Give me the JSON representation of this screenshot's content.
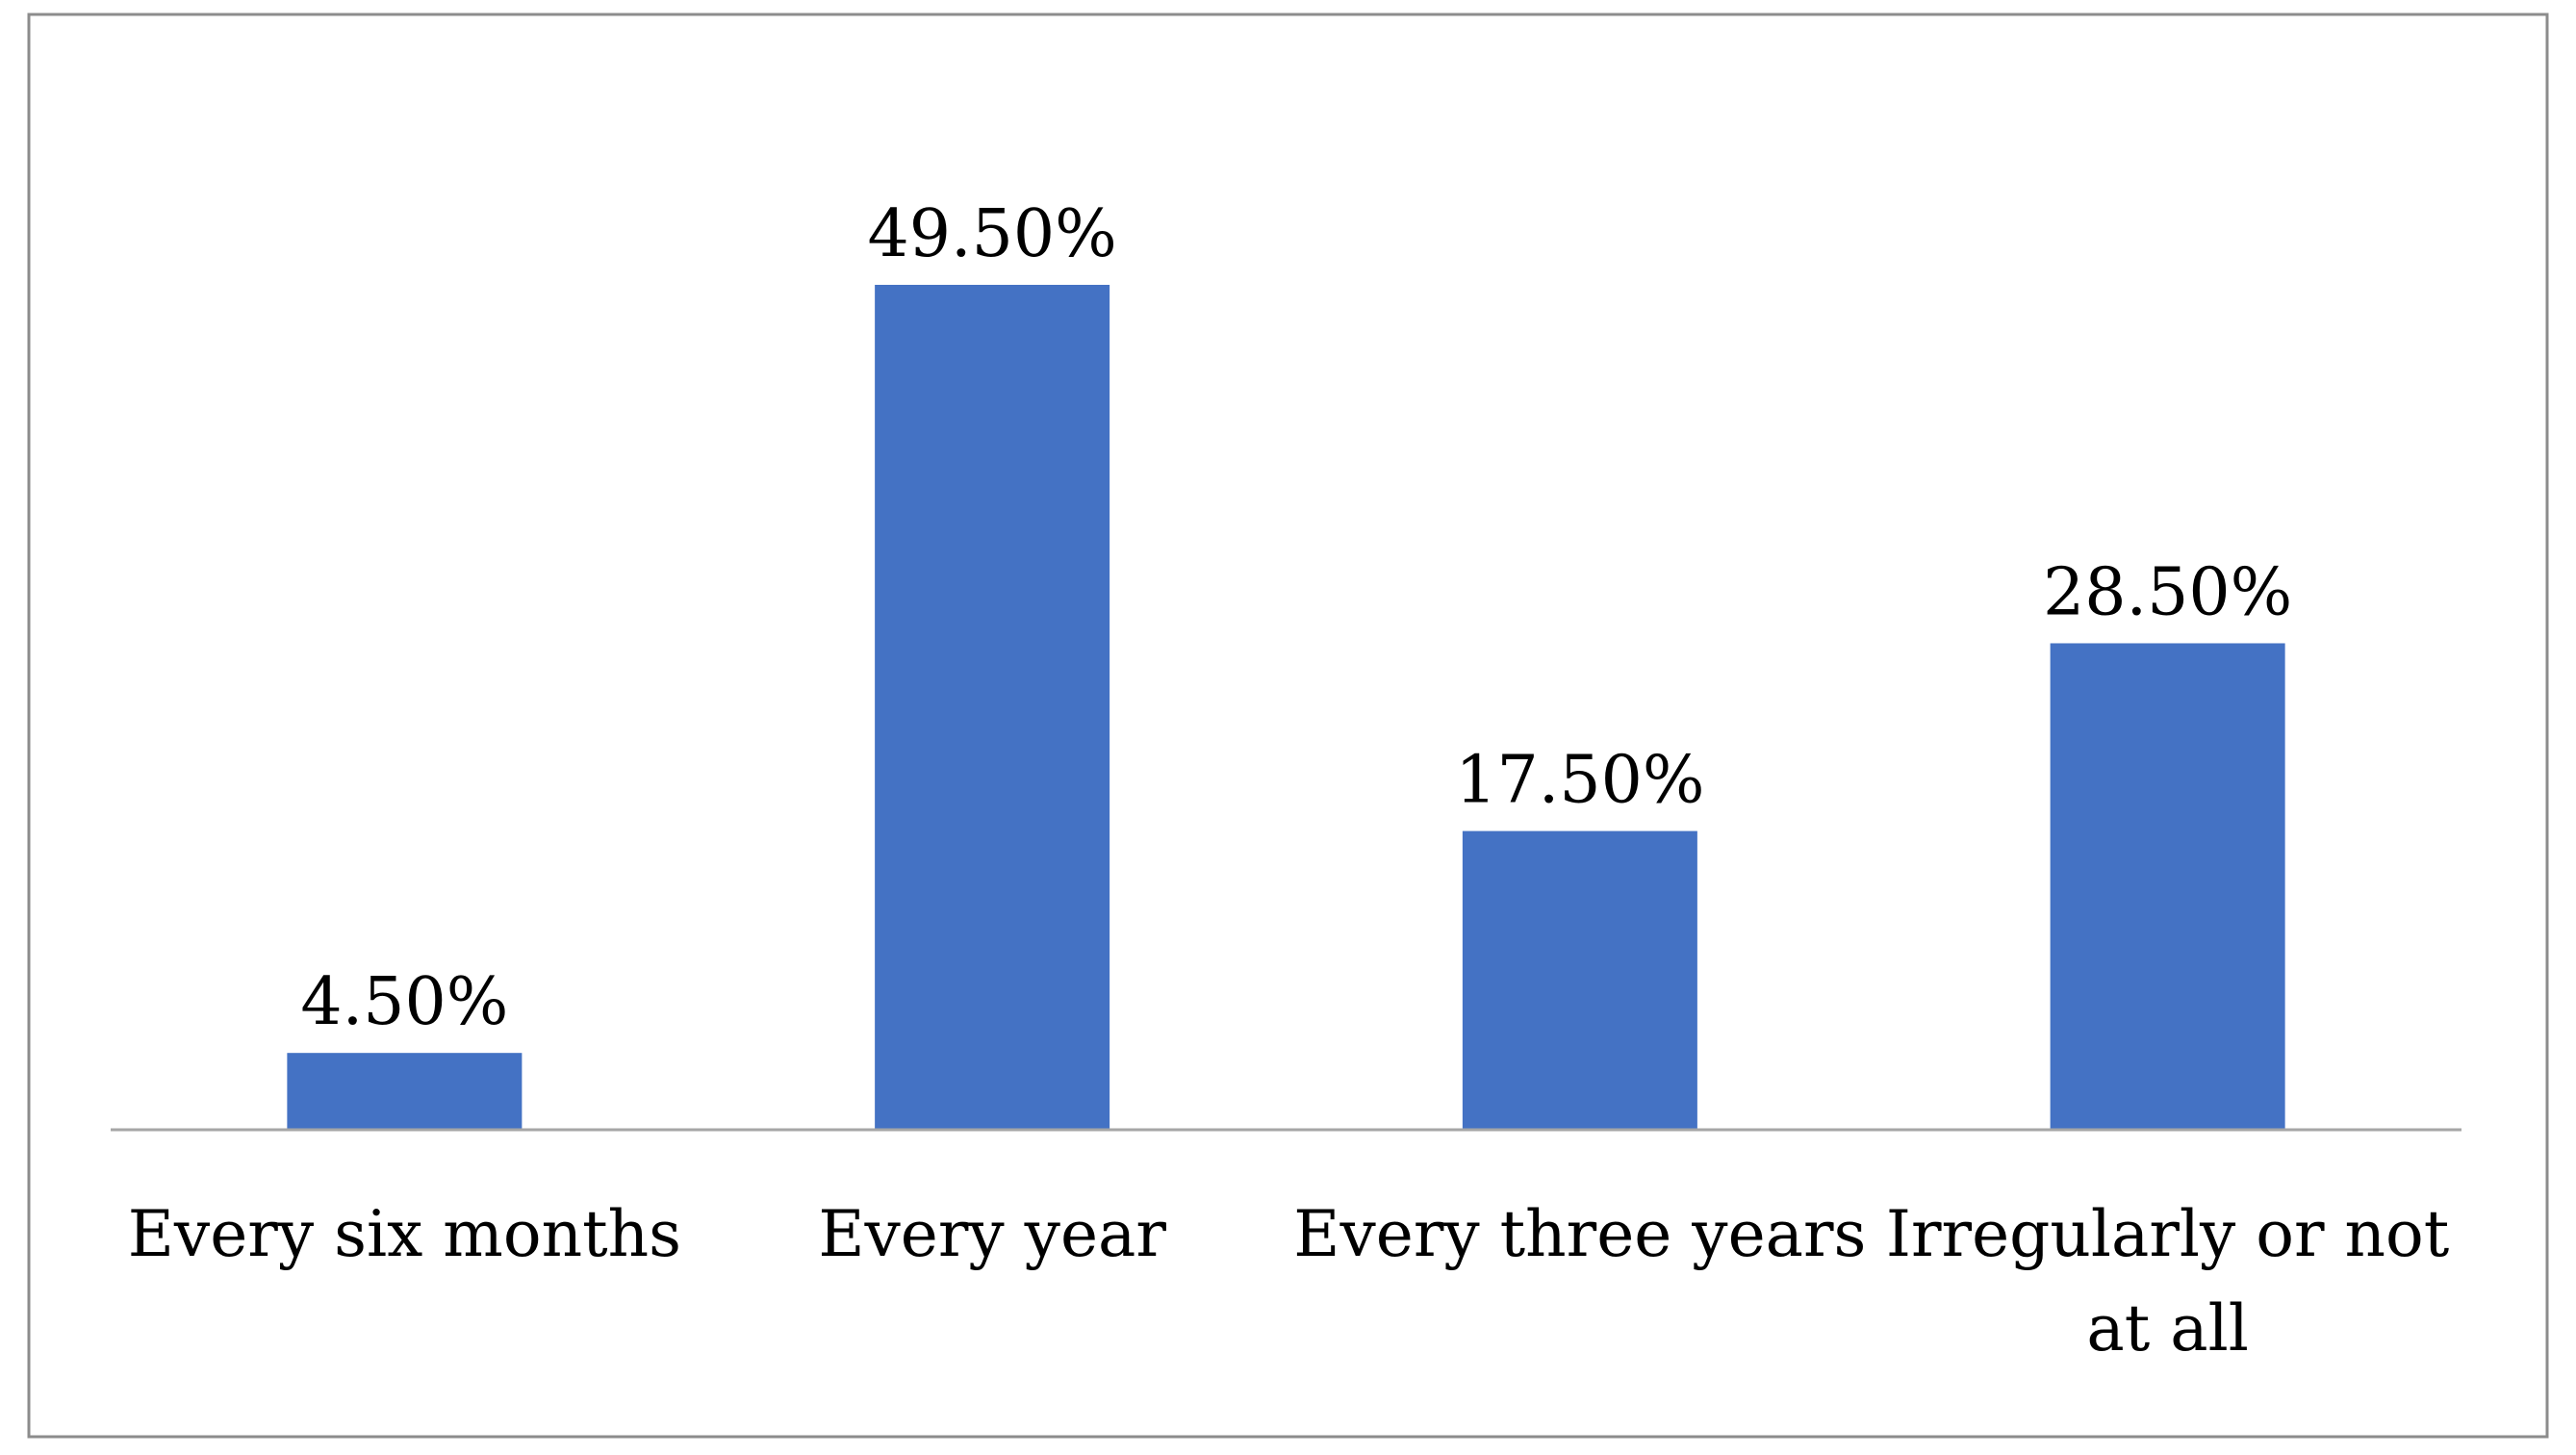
{
  "chart_data": {
    "type": "bar",
    "title": "",
    "xlabel": "",
    "ylabel": "",
    "categories": [
      [
        "Every six months"
      ],
      [
        "Every year"
      ],
      [
        "Every three years"
      ],
      [
        "Irregularly or not",
        "at all"
      ]
    ],
    "values": [
      4.5,
      49.5,
      17.5,
      28.5
    ],
    "value_labels": [
      "4.50%",
      "49.50%",
      "17.50%",
      "28.50%"
    ],
    "ylim": [
      0,
      55
    ],
    "grid": false,
    "legend": "none",
    "colors": {
      "bar": "#4472C4",
      "axis": "#A6A6A6",
      "frame": "#8C8C8C",
      "text": "#000000"
    }
  }
}
